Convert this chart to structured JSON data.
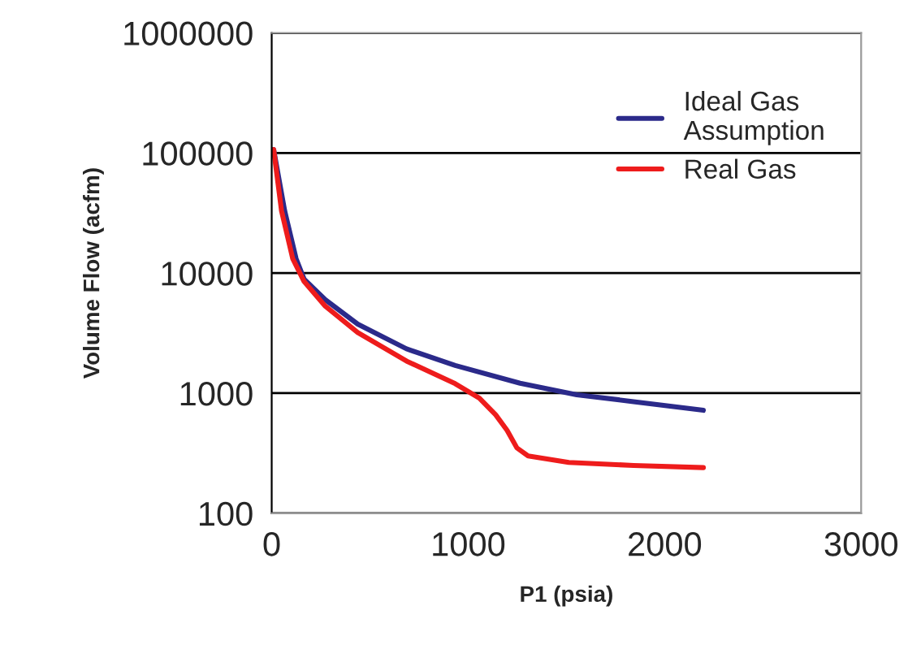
{
  "chart_data": {
    "type": "line",
    "xlabel": "P1 (psia)",
    "ylabel": "Volume Flow (acfm)",
    "log": "y",
    "xlim": [
      0,
      3000
    ],
    "xticks": [
      0,
      1000,
      2000,
      3000
    ],
    "ylim": [
      100,
      1000000
    ],
    "yticks": [
      100,
      1000,
      10000,
      100000,
      1000000
    ],
    "grid": "y",
    "legend": "top right",
    "marker": "none",
    "line_style": "solid",
    "series": [
      {
        "name": "Ideal Gas\nAssumption",
        "color": "#2b2a8a",
        "x": [
          10,
          66,
          124,
          165,
          273,
          438,
          686,
          934,
          1264,
          1553,
          1842,
          2197
        ],
        "values": [
          107000,
          33000,
          13200,
          8900,
          6000,
          3760,
          2340,
          1700,
          1210,
          970,
          850,
          720
        ]
      },
      {
        "name": "Real Gas",
        "color": "#ee1c1c",
        "x": [
          10,
          50,
          107,
          165,
          273,
          438,
          686,
          934,
          1057,
          1140,
          1198,
          1248,
          1305,
          1512,
          1842,
          2197
        ],
        "values": [
          107000,
          33000,
          13200,
          8500,
          5300,
          3200,
          1850,
          1200,
          910,
          660,
          490,
          350,
          300,
          265,
          250,
          240
        ]
      }
    ]
  }
}
